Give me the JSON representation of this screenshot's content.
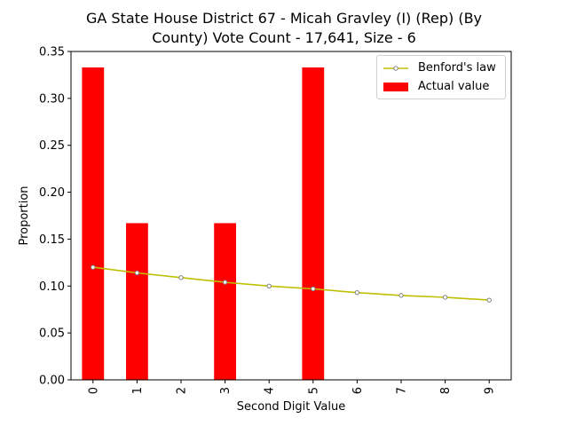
{
  "chart_data": {
    "type": "bar",
    "title_line1": "GA State House District 67 - Micah Gravley (I) (Rep) (By",
    "title_line2": "County) Vote Count - 17,641, Size - 6",
    "xlabel": "Second Digit Value",
    "ylabel": "Proportion",
    "categories": [
      "0",
      "1",
      "2",
      "3",
      "4",
      "5",
      "6",
      "7",
      "8",
      "9"
    ],
    "ylim": [
      0,
      0.35
    ],
    "yticks": [
      "0.00",
      "0.05",
      "0.10",
      "0.15",
      "0.20",
      "0.25",
      "0.30",
      "0.35"
    ],
    "legend_placement": "top-right",
    "series": [
      {
        "name": "Actual value",
        "type": "bar",
        "color": "#ff0000",
        "values": [
          0.333,
          0.167,
          0.0,
          0.167,
          0.0,
          0.333,
          0.0,
          0.0,
          0.0,
          0.0
        ]
      },
      {
        "name": "Benford's law",
        "type": "line",
        "color": "#bfbf00",
        "values": [
          0.12,
          0.114,
          0.109,
          0.104,
          0.1,
          0.097,
          0.093,
          0.09,
          0.088,
          0.085
        ]
      }
    ]
  }
}
